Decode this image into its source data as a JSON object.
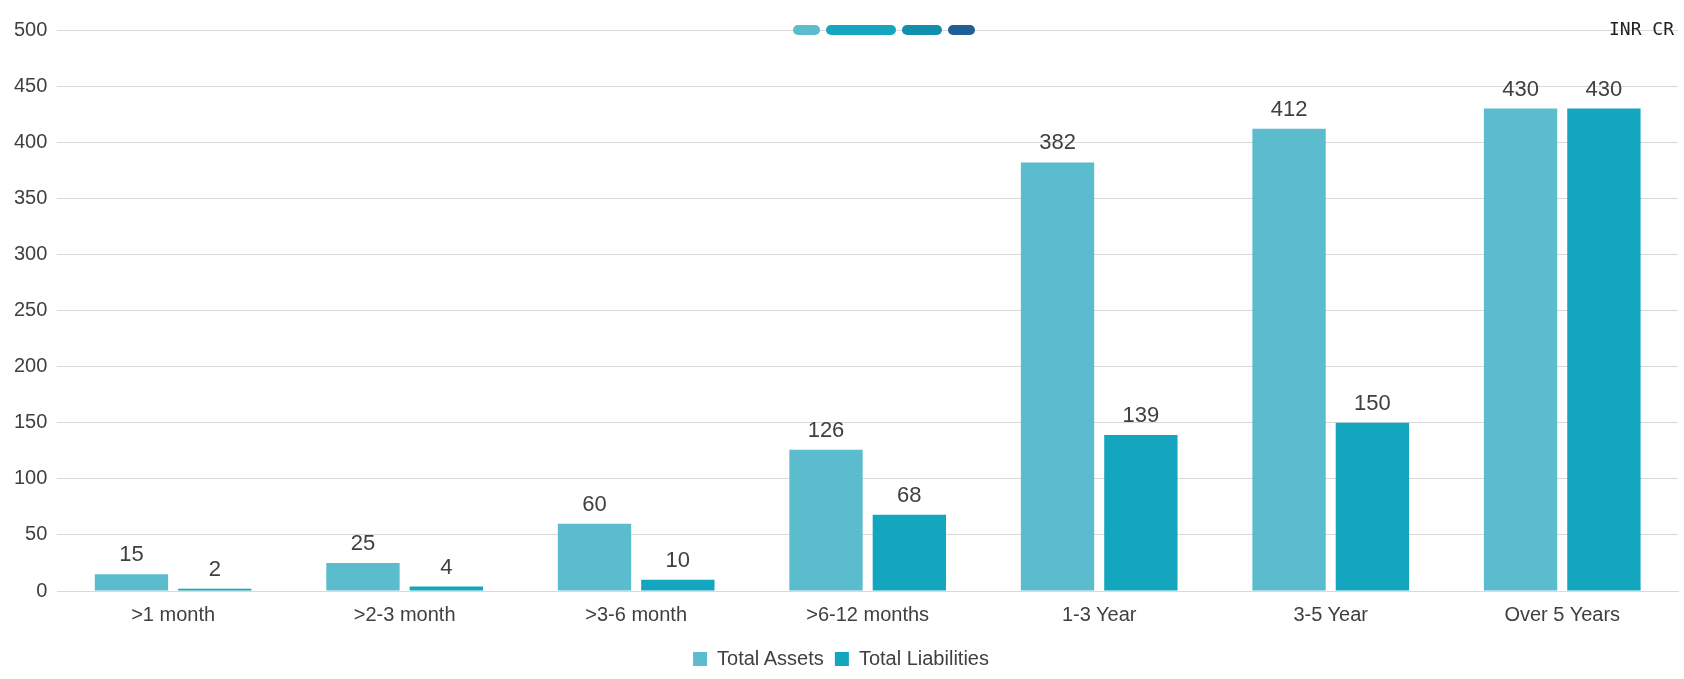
{
  "chart_data": {
    "type": "bar",
    "categories": [
      ">1 month",
      ">2-3 month",
      ">3-6 month",
      ">6-12 months",
      "1-3 Year",
      "3-5 Year",
      "Over 5 Years"
    ],
    "series": [
      {
        "name": "Total Assets",
        "color": "#5bbccd",
        "values": [
          15,
          25,
          60,
          126,
          382,
          412,
          430
        ]
      },
      {
        "name": "Total Liabilities",
        "color": "#13a6be",
        "values": [
          2,
          4,
          10,
          68,
          139,
          150,
          430
        ]
      }
    ],
    "ylim": [
      0,
      500
    ],
    "yticks": [
      0,
      50,
      100,
      150,
      200,
      250,
      300,
      350,
      400,
      450,
      500
    ],
    "grid": "y",
    "legend": "bottom",
    "data_labels": true,
    "annotations": [
      "INR CR"
    ]
  }
}
